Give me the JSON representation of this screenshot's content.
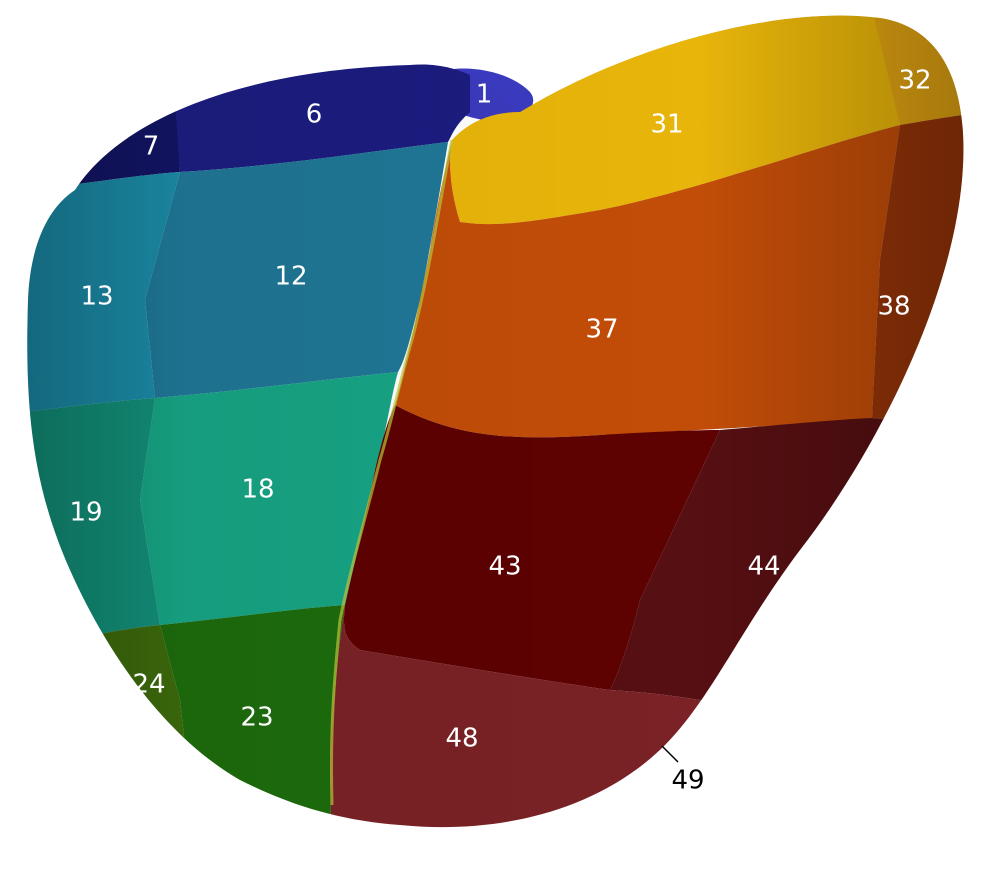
{
  "figure": {
    "segments": [
      {
        "id": "1",
        "label": "1",
        "color": "#3A3ABE"
      },
      {
        "id": "6",
        "label": "6",
        "color": "#1C1C80"
      },
      {
        "id": "7",
        "label": "7",
        "color": "#121464"
      },
      {
        "id": "12",
        "label": "12",
        "color": "#1F7796"
      },
      {
        "id": "13",
        "label": "13",
        "color": "#1B8AA6"
      },
      {
        "id": "18",
        "label": "18",
        "color": "#17A484"
      },
      {
        "id": "19",
        "label": "19",
        "color": "#128F78"
      },
      {
        "id": "23",
        "label": "23",
        "color": "#1D6C0D"
      },
      {
        "id": "24",
        "label": "24",
        "color": "#3C6A0C"
      },
      {
        "id": "31",
        "label": "31",
        "color": "#E8B50A"
      },
      {
        "id": "32",
        "label": "32",
        "color": "#E2A411"
      },
      {
        "id": "37",
        "label": "37",
        "color": "#C24D08"
      },
      {
        "id": "38",
        "label": "38",
        "color": "#963407"
      },
      {
        "id": "43",
        "label": "43",
        "color": "#5E0101"
      },
      {
        "id": "44",
        "label": "44",
        "color": "#560F12"
      },
      {
        "id": "48",
        "label": "48",
        "color": "#7A2226"
      },
      {
        "id": "49",
        "label": "49",
        "color": "#6A2729"
      }
    ],
    "label_color_light": "#FFFFFF",
    "label_color_dark": "#000000"
  }
}
